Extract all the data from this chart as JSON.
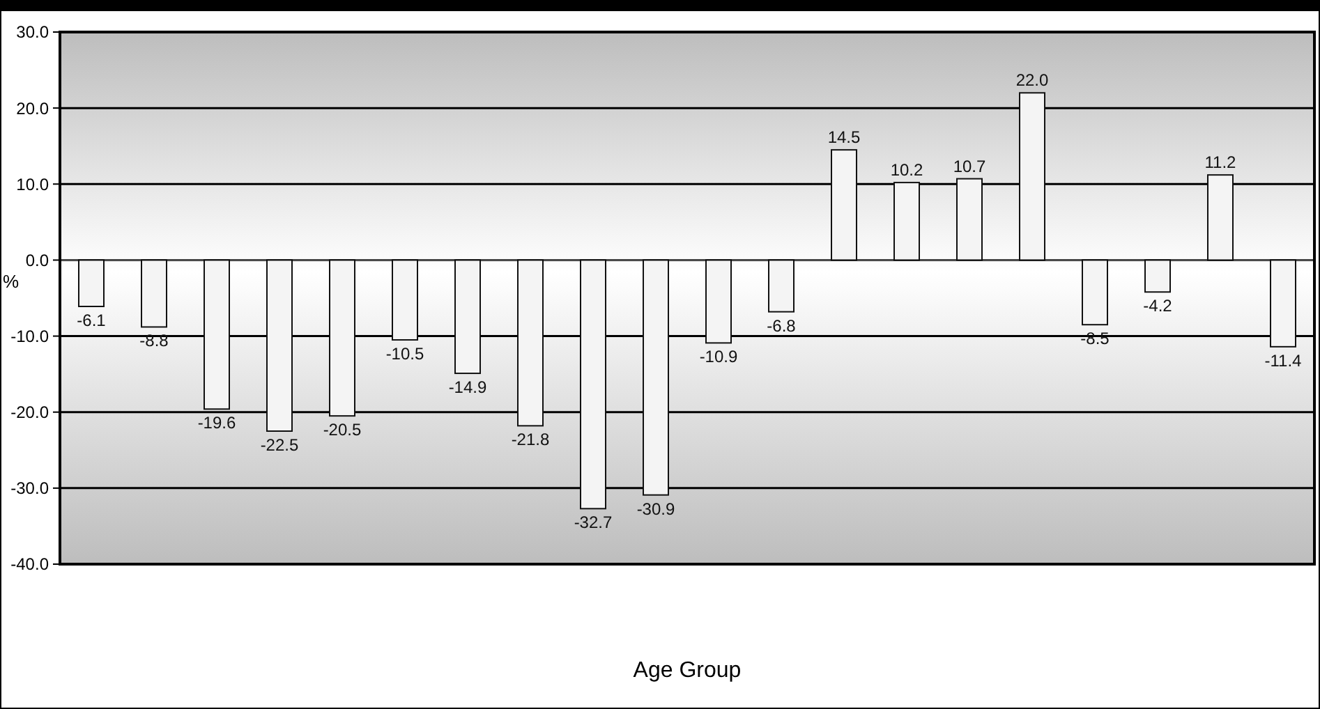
{
  "chart_data": {
    "type": "bar",
    "xlabel": "Age Group",
    "ylabel": "%",
    "categories": [
      null,
      null,
      null,
      null,
      null,
      null,
      null,
      null,
      null,
      null,
      null,
      null,
      null,
      null,
      null,
      null,
      null,
      null,
      null,
      null
    ],
    "value_labels": [
      "-6.1",
      "-8.8",
      "-19.6",
      "-22.5",
      "-20.5",
      "-10.5",
      "-14.9",
      "-21.8",
      "-32.7",
      "-30.9",
      "-10.9",
      "-6.8",
      "14.5",
      "10.2",
      "10.7",
      "22.0",
      "-8.5",
      "-4.2",
      "11.2",
      "-11.4"
    ],
    "values": [
      -6.1,
      -8.8,
      -19.6,
      -22.5,
      -20.5,
      -10.5,
      -14.9,
      -21.8,
      -32.7,
      -30.9,
      -10.9,
      -6.8,
      14.5,
      10.2,
      10.7,
      22.0,
      -8.5,
      -4.2,
      11.2,
      -11.4
    ],
    "color": "#f4f4f4",
    "ylim": [
      -40,
      30
    ],
    "yticks": [
      {
        "value": -40,
        "label": "-40.0"
      },
      {
        "value": -30,
        "label": "-30.0"
      },
      {
        "value": -20,
        "label": "-20.0"
      },
      {
        "value": -10,
        "label": "-10.0"
      },
      {
        "value": 0,
        "label": "0.0"
      },
      {
        "value": 10,
        "label": "10.0"
      },
      {
        "value": 20,
        "label": "20.0"
      },
      {
        "value": 30,
        "label": "30.0"
      }
    ],
    "grid": "y",
    "tick_labels": "y"
  }
}
